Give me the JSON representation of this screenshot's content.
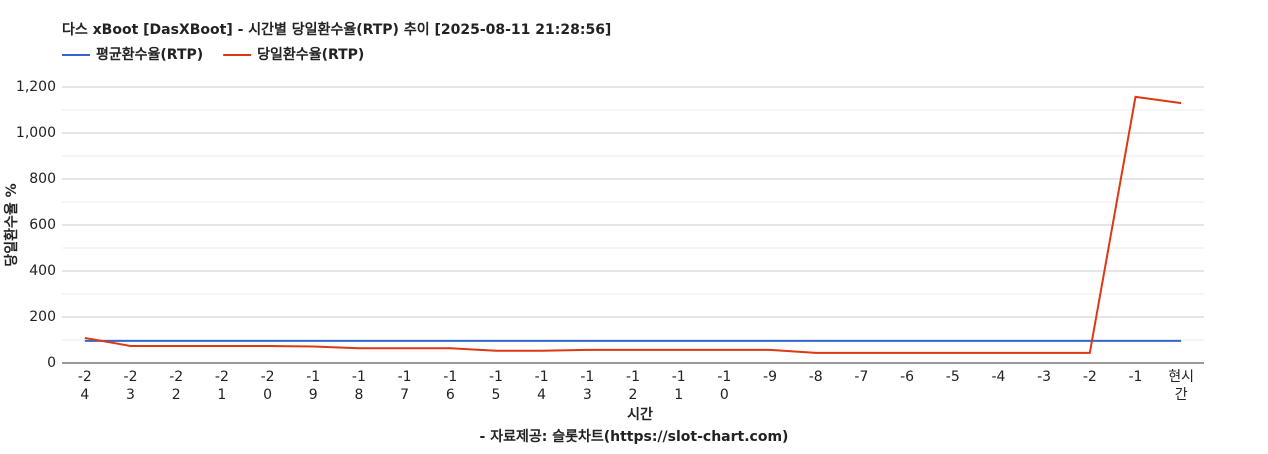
{
  "chart_data": {
    "type": "line",
    "title": "다스 xBoot [DasXBoot] - 시간별 당일환수율(RTP) 추이 [2025-08-11 21:28:56]",
    "x_label": "시간",
    "subtitle": "- 자료제공: 슬롯차트(https://slot-chart.com)",
    "y_label": "당일환수율 %",
    "categories": [
      "-24",
      "-23",
      "-22",
      "-21",
      "-20",
      "-19",
      "-18",
      "-17",
      "-16",
      "-15",
      "-14",
      "-13",
      "-12",
      "-11",
      "-10",
      "-9",
      "-8",
      "-7",
      "-6",
      "-5",
      "-4",
      "-3",
      "-2",
      "-1",
      "현시간"
    ],
    "series": [
      {
        "name": "평균환수율(RTP)",
        "color": "#3366cc",
        "values": [
          96,
          96,
          96,
          96,
          96,
          96,
          96,
          96,
          96,
          96,
          96,
          96,
          96,
          96,
          96,
          96,
          96,
          96,
          96,
          96,
          96,
          96,
          96,
          96,
          96
        ]
      },
      {
        "name": "당일환수율(RTP)",
        "color": "#dc3912",
        "values": [
          109,
          74,
          74,
          74,
          74,
          72,
          64,
          64,
          64,
          53,
          53,
          57,
          57,
          57,
          57,
          57,
          44,
          44,
          44,
          44,
          44,
          44,
          44,
          1157,
          1130
        ]
      }
    ],
    "ylim": [
      0,
      1200
    ],
    "yticks": [
      0,
      200,
      400,
      600,
      800,
      {
        "value": 1000,
        "label": "1,000"
      },
      {
        "value": 1200,
        "label": "1,200"
      }
    ],
    "minor_yticks": [
      100,
      300,
      500,
      700,
      900,
      1100
    ],
    "grid": true,
    "legend": "top"
  }
}
